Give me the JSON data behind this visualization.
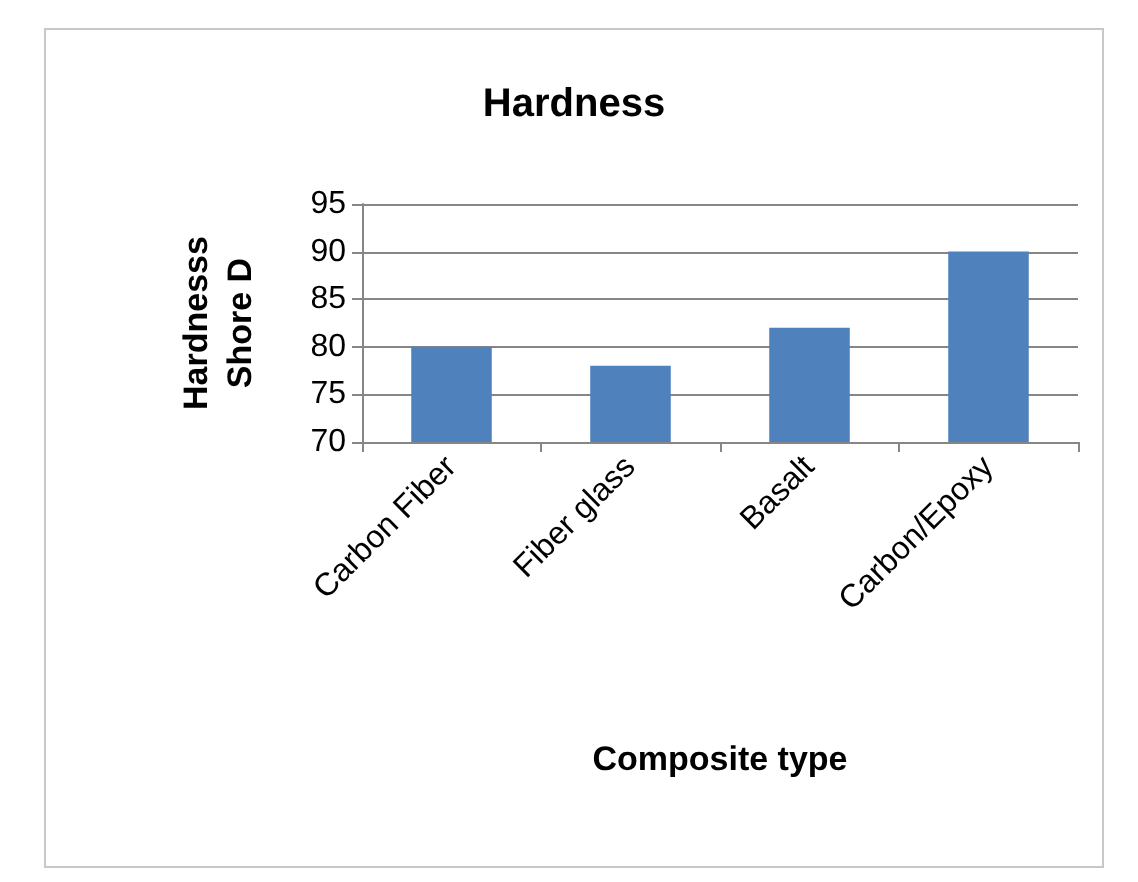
{
  "chart_data": {
    "type": "bar",
    "title": "Hardness",
    "xlabel": "Composite type",
    "ylabel": "Hardnesss\nShore D",
    "categories": [
      "Carbon Fiber",
      "Fiber glass",
      "Basalt",
      "Carbon/Epoxy"
    ],
    "values": [
      80,
      78,
      82,
      90
    ],
    "color": "#4f81bd",
    "ylim": [
      70,
      95
    ],
    "yticks": [
      70,
      75,
      80,
      85,
      90,
      95
    ],
    "grid": "y"
  }
}
